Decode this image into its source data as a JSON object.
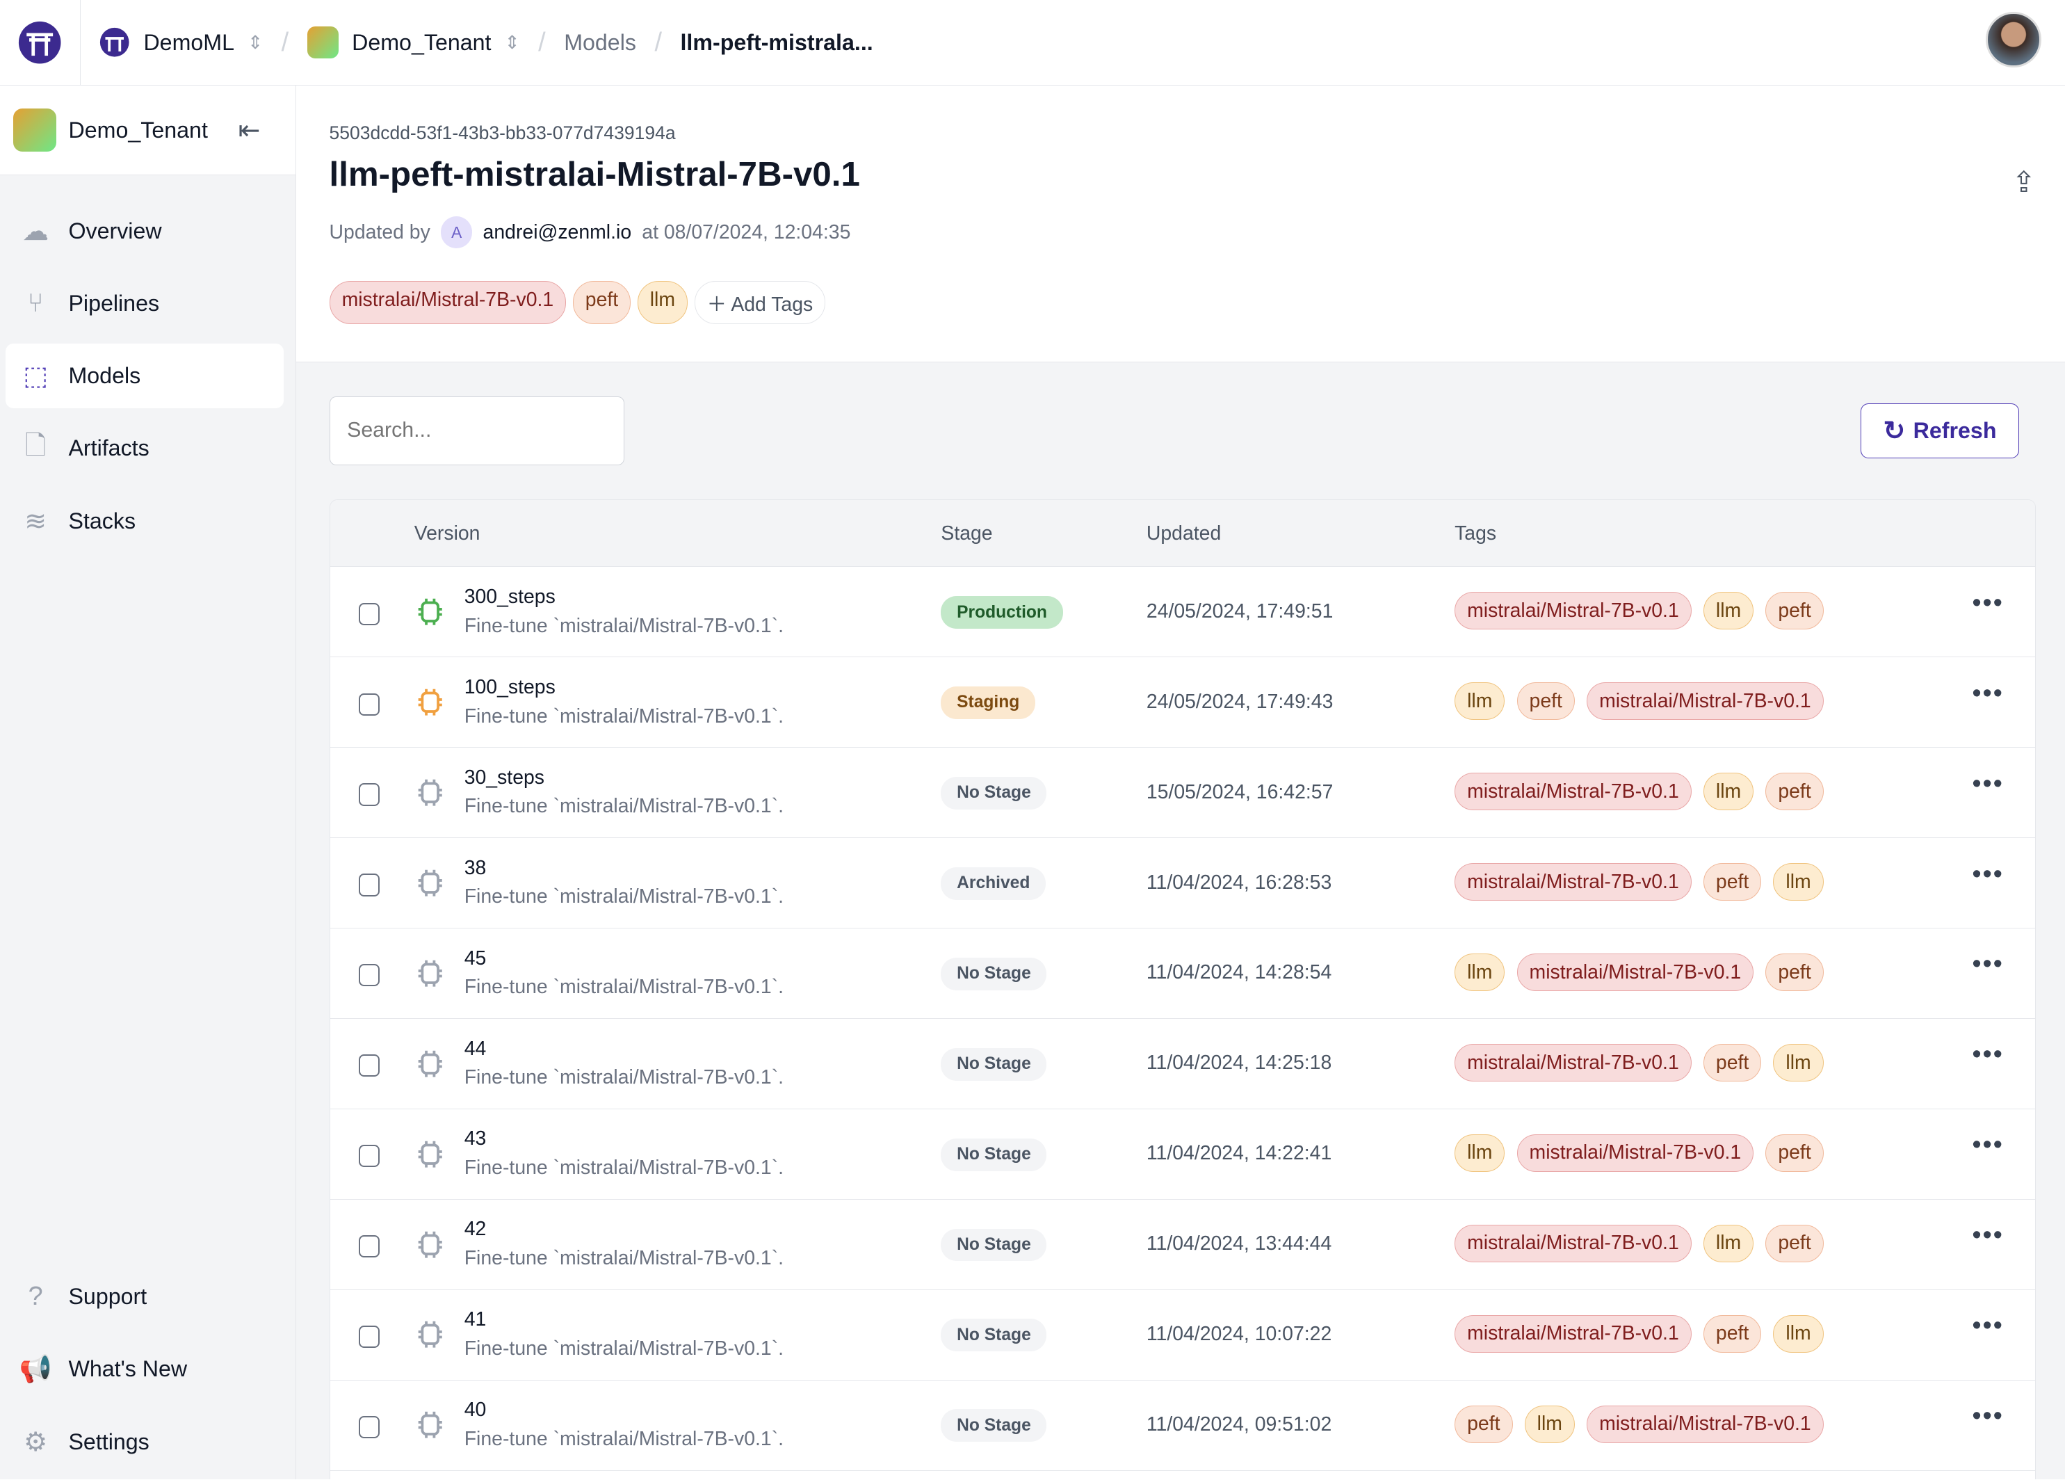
{
  "topbar": {
    "workspace": "DemoML",
    "tenant": "Demo_Tenant",
    "section": "Models",
    "current": "llm-peft-mistrala..."
  },
  "sidebar": {
    "tenant": "Demo_Tenant",
    "items": [
      {
        "label": "Overview",
        "icon": "cloud-icon"
      },
      {
        "label": "Pipelines",
        "icon": "pipeline-icon"
      },
      {
        "label": "Models",
        "icon": "cpu-icon",
        "active": true
      },
      {
        "label": "Artifacts",
        "icon": "file-icon"
      },
      {
        "label": "Stacks",
        "icon": "layers-icon"
      }
    ],
    "bottom": [
      {
        "label": "Support",
        "icon": "help-icon"
      },
      {
        "label": "What's New",
        "icon": "megaphone-icon"
      },
      {
        "label": "Settings",
        "icon": "gear-icon"
      }
    ]
  },
  "model": {
    "id": "5503dcdd-53f1-43b3-bb33-077d7439194a",
    "name": "llm-peft-mistralai-Mistral-7B-v0.1",
    "updated_by_label": "Updated by",
    "avatar_letter": "A",
    "user": "andrei@zenml.io",
    "updated_at": "at 08/07/2024, 12:04:35",
    "tags": [
      "mistralai/Mistral-7B-v0.1",
      "peft",
      "llm"
    ],
    "add_tags": "Add Tags"
  },
  "search": {
    "placeholder": "Search..."
  },
  "refresh_label": "Refresh",
  "table": {
    "headers": [
      "Version",
      "Stage",
      "Updated",
      "Tags"
    ],
    "rows": [
      {
        "version": "300_steps",
        "desc": "Fine-tune `mistralai/Mistral-7B-v0.1`.",
        "stage": "Production",
        "updated": "24/05/2024, 17:49:51",
        "tags": [
          "mistralai/Mistral-7B-v0.1",
          "llm",
          "peft"
        ]
      },
      {
        "version": "100_steps",
        "desc": "Fine-tune `mistralai/Mistral-7B-v0.1`.",
        "stage": "Staging",
        "updated": "24/05/2024, 17:49:43",
        "tags": [
          "llm",
          "peft",
          "mistralai/Mistral-7B-v0.1"
        ]
      },
      {
        "version": "30_steps",
        "desc": "Fine-tune `mistralai/Mistral-7B-v0.1`.",
        "stage": "No Stage",
        "updated": "15/05/2024, 16:42:57",
        "tags": [
          "mistralai/Mistral-7B-v0.1",
          "llm",
          "peft"
        ]
      },
      {
        "version": "38",
        "desc": "Fine-tune `mistralai/Mistral-7B-v0.1`.",
        "stage": "Archived",
        "updated": "11/04/2024, 16:28:53",
        "tags": [
          "mistralai/Mistral-7B-v0.1",
          "peft",
          "llm"
        ]
      },
      {
        "version": "45",
        "desc": "Fine-tune `mistralai/Mistral-7B-v0.1`.",
        "stage": "No Stage",
        "updated": "11/04/2024, 14:28:54",
        "tags": [
          "llm",
          "mistralai/Mistral-7B-v0.1",
          "peft"
        ]
      },
      {
        "version": "44",
        "desc": "Fine-tune `mistralai/Mistral-7B-v0.1`.",
        "stage": "No Stage",
        "updated": "11/04/2024, 14:25:18",
        "tags": [
          "mistralai/Mistral-7B-v0.1",
          "peft",
          "llm"
        ]
      },
      {
        "version": "43",
        "desc": "Fine-tune `mistralai/Mistral-7B-v0.1`.",
        "stage": "No Stage",
        "updated": "11/04/2024, 14:22:41",
        "tags": [
          "llm",
          "mistralai/Mistral-7B-v0.1",
          "peft"
        ]
      },
      {
        "version": "42",
        "desc": "Fine-tune `mistralai/Mistral-7B-v0.1`.",
        "stage": "No Stage",
        "updated": "11/04/2024, 13:44:44",
        "tags": [
          "mistralai/Mistral-7B-v0.1",
          "llm",
          "peft"
        ]
      },
      {
        "version": "41",
        "desc": "Fine-tune `mistralai/Mistral-7B-v0.1`.",
        "stage": "No Stage",
        "updated": "11/04/2024, 10:07:22",
        "tags": [
          "mistralai/Mistral-7B-v0.1",
          "peft",
          "llm"
        ]
      },
      {
        "version": "40",
        "desc": "Fine-tune `mistralai/Mistral-7B-v0.1`.",
        "stage": "No Stage",
        "updated": "11/04/2024, 09:51:02",
        "tags": [
          "peft",
          "llm",
          "mistralai/Mistral-7B-v0.1"
        ]
      }
    ]
  },
  "colors": {
    "accent": "#4f3bb5",
    "production": "#4caf50",
    "staging": "#f0a040",
    "default_icon": "#9ca3af"
  }
}
